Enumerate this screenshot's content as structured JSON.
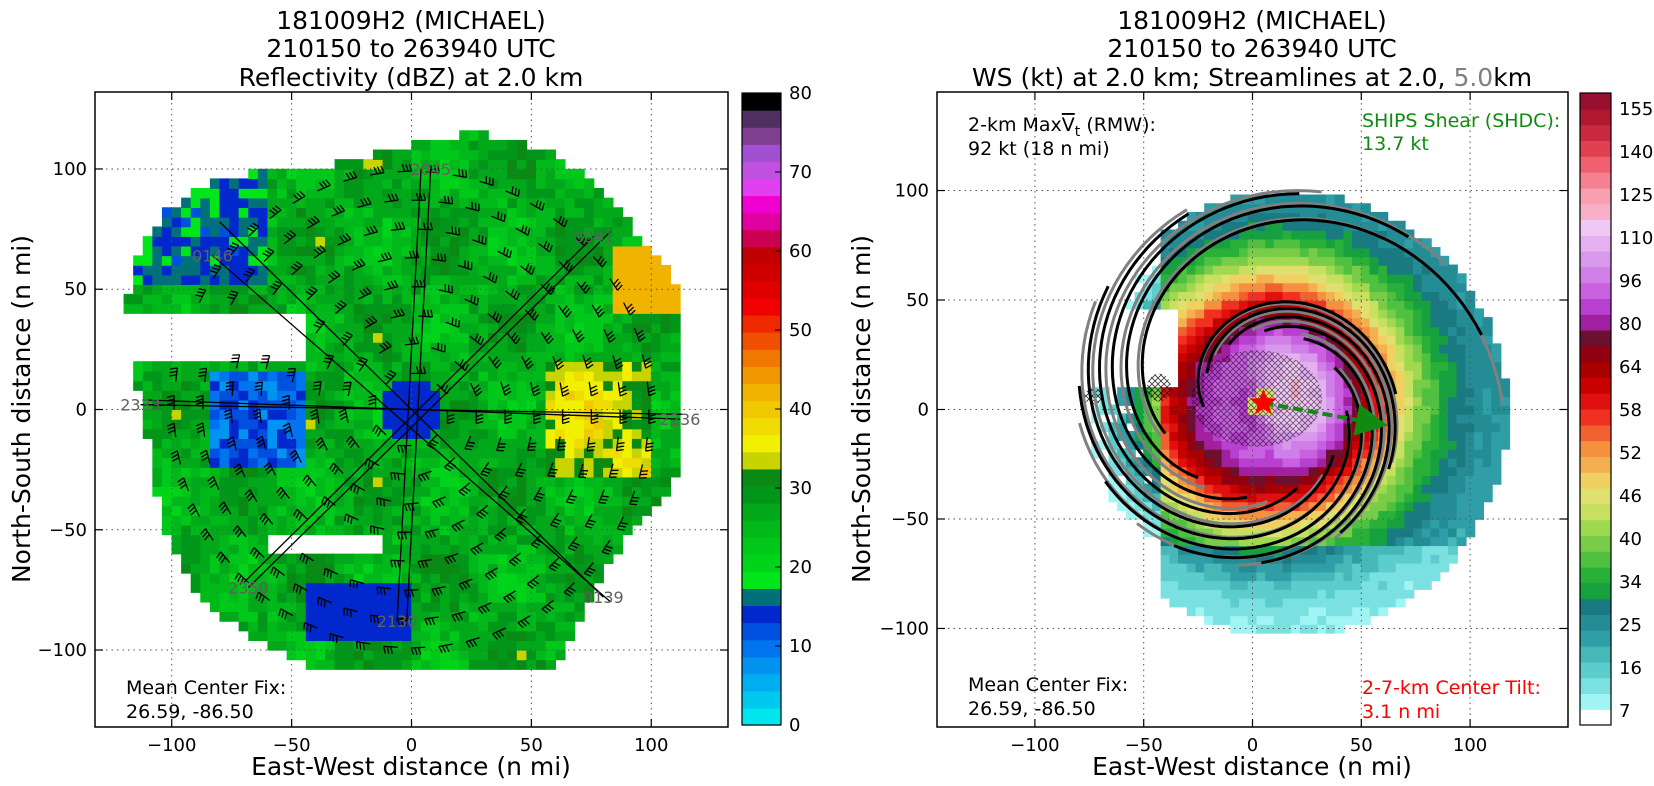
{
  "colors": {
    "dbz_scale": [
      "#00e5ee",
      "#00c8ee",
      "#00adf0",
      "#0093f0",
      "#0074ee",
      "#0050e0",
      "#0028cc",
      "#00707a",
      "#00e61a",
      "#00d41a",
      "#00c81a",
      "#00b81a",
      "#00a81a",
      "#00961a",
      "#0a8a14",
      "#c8d400",
      "#f0f000",
      "#f0dc00",
      "#f0c800",
      "#f0b400",
      "#f09600",
      "#f07800",
      "#f05000",
      "#f02800",
      "#f00000",
      "#e00000",
      "#d00000",
      "#c00000",
      "#cc0050",
      "#e000a0",
      "#f000d0",
      "#e040f0",
      "#c050e0",
      "#a050d0",
      "#804090",
      "#503060",
      "#000000"
    ],
    "ws_scale": [
      "#ffffff",
      "#a0f4f4",
      "#7ae0e0",
      "#5ccccc",
      "#46b8b8",
      "#309ea6",
      "#248c94",
      "#1a7a82",
      "#16a040",
      "#28b038",
      "#50c040",
      "#78cc48",
      "#a0d850",
      "#c8e060",
      "#e0e070",
      "#f0d060",
      "#f4b050",
      "#f49040",
      "#f06030",
      "#f03020",
      "#e01010",
      "#c80000",
      "#a80000",
      "#900010",
      "#6c1030",
      "#a020a0",
      "#b840d0",
      "#c860e0",
      "#d07ee8",
      "#d898ec",
      "#e4b0f0",
      "#f0c8f4",
      "#f8b0c8",
      "#f8a0b0",
      "#f48090",
      "#f06070",
      "#e04050",
      "#c82840",
      "#b01830",
      "#981030"
    ]
  },
  "chart_data": [
    {
      "type": "heatmap",
      "title_lines": [
        "181009H2 (MICHAEL)",
        "210150 to 263940 UTC",
        "Reflectivity (dBZ) at 2.0 km"
      ],
      "xlabel": "East-West distance (n mi)",
      "ylabel": "North-South distance (n mi)",
      "xlim": [
        -132,
        132
      ],
      "ylim": [
        -132,
        132
      ],
      "xticks": [
        -100,
        -50,
        0,
        50,
        100
      ],
      "yticks": [
        -100,
        -50,
        0,
        50,
        100
      ],
      "grid": true,
      "colorbar": {
        "min": 0,
        "max": 80,
        "ticks": [
          0,
          10,
          20,
          30,
          40,
          50,
          60,
          70,
          80
        ]
      },
      "flight_legs": [
        {
          "label": "0146",
          "x": -83,
          "y": 64,
          "x2": 83,
          "y2": -80
        },
        {
          "label": "2350",
          "x": -68,
          "y": -74,
          "x2": 83,
          "y2": 74
        },
        {
          "label": "0041",
          "x": 76,
          "y": 72,
          "x2": -70,
          "y2": -72
        },
        {
          "label": "0139",
          "x": 80,
          "y": -78,
          "x2": -80,
          "y2": 78
        },
        {
          "label": "2333",
          "x": -113,
          "y": 2,
          "x2": 113,
          "y2": -2
        },
        {
          "label": "2236",
          "x": 112,
          "y": -4,
          "x2": -112,
          "y2": 4
        },
        {
          "label": "2130",
          "x": -6,
          "y": -88,
          "x2": 4,
          "y2": 100
        },
        {
          "label": "2045",
          "x": 8,
          "y": 100,
          "x2": -2,
          "y2": -88
        }
      ],
      "annotations": [
        {
          "text": "Mean Center Fix:",
          "x": -118,
          "y": -113
        },
        {
          "text": "26.59, -86.50",
          "x": -118,
          "y": -123
        }
      ]
    },
    {
      "type": "heatmap",
      "title_lines": [
        "181009H2 (MICHAEL)",
        "210150 to 263940 UTC",
        "WS (kt) at 2.0 km; Streamlines at 2.0, ",
        "5.0",
        "km"
      ],
      "xlabel": "East-West distance (n mi)",
      "ylabel": "North-South distance (n mi)",
      "xlim": [
        -145,
        145
      ],
      "ylim": [
        -145,
        145
      ],
      "xticks": [
        -100,
        -50,
        0,
        50,
        100
      ],
      "yticks": [
        -100,
        -50,
        0,
        50,
        100
      ],
      "grid": true,
      "colorbar": {
        "ticks": [
          7,
          16,
          25,
          34,
          40,
          46,
          52,
          58,
          64,
          80,
          96,
          110,
          125,
          140,
          155
        ]
      },
      "center_tilt_vector": {
        "x1": 5,
        "y1": 3,
        "x2": 55,
        "y2": -6
      },
      "annotations": {
        "vmax_line1": "2-km Max",
        "vmax_symbol": "V",
        "vmax_sub": "t",
        "vmax_rest": " (RMW):",
        "vmax_line2": "92 kt (18 n mi)",
        "shear_line1": "SHIPS Shear (SHDC):",
        "shear_line2": "13.7 kt",
        "fix_line1": "Mean Center Fix:",
        "fix_line2": "26.59, -86.50",
        "tilt_line1": "2-7-km Center Tilt:",
        "tilt_line2": "3.1 n mi"
      }
    }
  ]
}
